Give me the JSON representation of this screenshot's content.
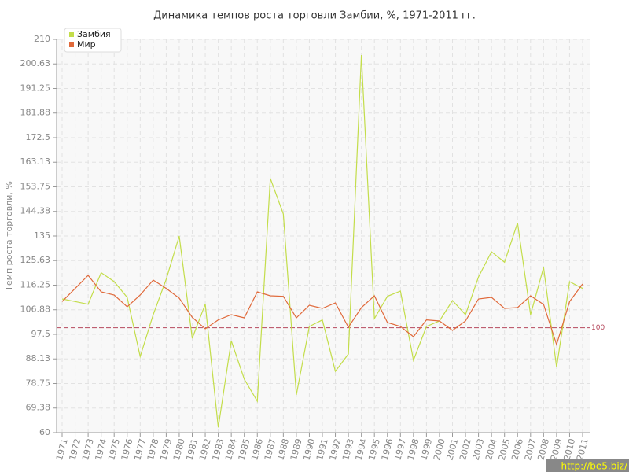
{
  "chart_data": {
    "type": "line",
    "title": "Динамика темпов роста торговли Замбии, %, 1971-2011 гг.",
    "y_label": "Темп роста торговли, %",
    "categories": [
      "1971",
      "1972",
      "1973",
      "1974",
      "1975",
      "1976",
      "1977",
      "1978",
      "1979",
      "1980",
      "1981",
      "1982",
      "1983",
      "1984",
      "1985",
      "1986",
      "1987",
      "1988",
      "1989",
      "1990",
      "1991",
      "1992",
      "1993",
      "1994",
      "1995",
      "1996",
      "1997",
      "1998",
      "1999",
      "2000",
      "2001",
      "2002",
      "2003",
      "2004",
      "2005",
      "2006",
      "2007",
      "2008",
      "2009",
      "2010",
      "2011"
    ],
    "series": [
      {
        "name": "Замбия",
        "color": "#c3dd4a",
        "values": [
          111,
          110,
          109,
          121,
          117.6,
          111.6,
          89,
          105,
          118.5,
          135,
          96,
          109,
          62,
          95,
          80.4,
          72,
          157,
          143.4,
          74.4,
          100.5,
          103,
          83.4,
          90,
          204,
          103.5,
          112,
          114,
          87.6,
          100.5,
          102.6,
          110.4,
          105,
          119.4,
          129,
          125,
          140,
          105,
          123,
          85,
          117.6,
          115
        ]
      },
      {
        "name": "Мир",
        "color": "#e0693a",
        "values": [
          110,
          115,
          120,
          113.7,
          112.5,
          108,
          112.5,
          118.2,
          115,
          111.3,
          104,
          99.6,
          103,
          105,
          103.8,
          113.7,
          112.2,
          112,
          103.8,
          108.6,
          107.4,
          109.5,
          100.2,
          107.7,
          112.2,
          102,
          100.5,
          96.6,
          103,
          102.6,
          99,
          102.6,
          111,
          111.6,
          107.4,
          107.7,
          112.2,
          108.9,
          93.6,
          110,
          116.7
        ]
      }
    ],
    "ylim": [
      60,
      210
    ],
    "yticks": [
      60,
      69.38,
      78.75,
      88.13,
      97.5,
      106.88,
      116.25,
      125.63,
      135,
      144.38,
      153.75,
      163.13,
      172.5,
      181.88,
      191.25,
      200.63,
      210
    ],
    "grid": true,
    "legend": "top-left",
    "reference_line": 100,
    "reference_color": "#b5485c",
    "watermark": "http://be5.biz/"
  }
}
